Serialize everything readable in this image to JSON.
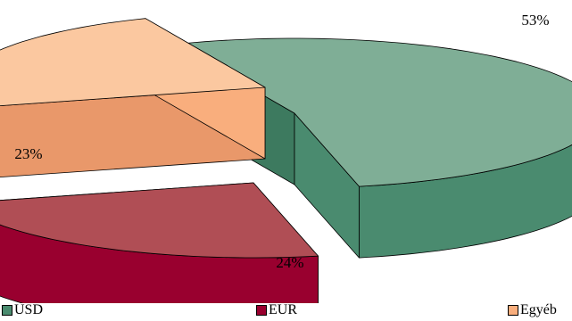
{
  "chart_data": {
    "type": "pie",
    "title": "",
    "categories": [
      "USD",
      "EUR",
      "Egyéb"
    ],
    "values": [
      53,
      24,
      23
    ],
    "value_labels": [
      "53%",
      "24%",
      "23%"
    ],
    "colors": {
      "USD": {
        "top": "#7fae96",
        "side": "#4a8b6f",
        "dark": "#3d7a5f"
      },
      "EUR": {
        "top": "#b04e55",
        "side": "#99002f",
        "dark": "#7c0026"
      },
      "Egyéb": {
        "top": "#fbc8a0",
        "side": "#f9ae7d",
        "dark": "#e9986a"
      }
    },
    "legend_position": "bottom",
    "style": "3d-exploded"
  }
}
